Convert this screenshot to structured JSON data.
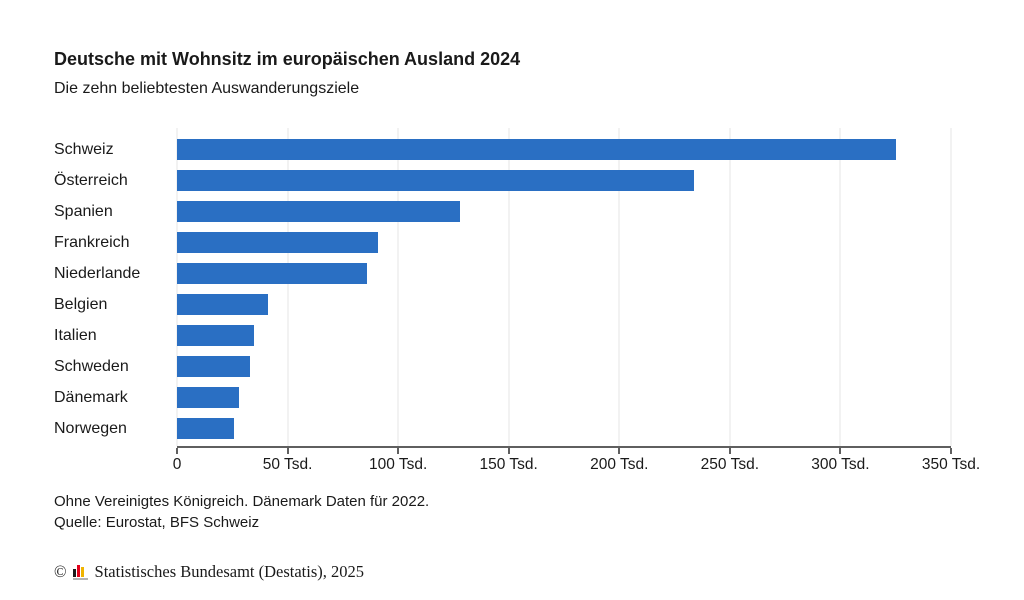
{
  "chart_data": {
    "type": "bar",
    "orientation": "horizontal",
    "title": "Deutsche mit Wohnsitz im europäischen Ausland 2024",
    "subtitle": "Die zehn beliebtesten Auswanderungsziele",
    "categories": [
      "Schweiz",
      "Österreich",
      "Spanien",
      "Frankreich",
      "Niederlande",
      "Belgien",
      "Italien",
      "Schweden",
      "Dänemark",
      "Norwegen"
    ],
    "values": [
      325,
      234,
      128,
      91,
      86,
      41,
      35,
      33,
      28,
      26
    ],
    "values_unit": "Tsd.",
    "xlabel": "",
    "ylabel": "",
    "xlim": [
      0,
      350
    ],
    "x_ticks": [
      0,
      50,
      100,
      150,
      200,
      250,
      300,
      350
    ],
    "x_tick_labels": [
      "0",
      "50 Tsd.",
      "100 Tsd.",
      "150 Tsd.",
      "200 Tsd.",
      "250 Tsd.",
      "300 Tsd.",
      "350 Tsd."
    ],
    "grid": true,
    "legend": "none",
    "bar_color": "#2a6fc3",
    "gridline_color": "#e4e4e4",
    "axis_color": "#5f5f5f"
  },
  "notes": {
    "line1": "Ohne Vereinigtes Königreich. Dänemark Daten für 2022.",
    "line2": "Quelle: Eurostat, BFS Schweiz"
  },
  "footer": {
    "copyright_symbol": "©",
    "text": "Statistisches Bundesamt (Destatis), 2025",
    "logo_colors": {
      "black": "#1a1a1a",
      "red": "#e2001a",
      "gold": "#f0b400",
      "base": "#b3b3b3"
    }
  }
}
